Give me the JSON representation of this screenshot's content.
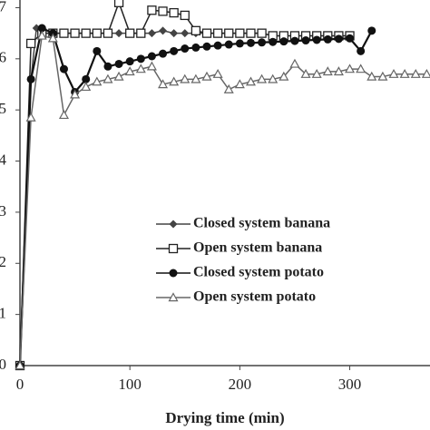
{
  "chart_data": {
    "type": "line",
    "x_label": "Drying time (min)",
    "xlim": [
      0,
      373
    ],
    "ylim": [
      0,
      7.15
    ],
    "xticks": [
      0,
      100,
      200,
      300
    ],
    "yticks": [
      0,
      1,
      2,
      3,
      4,
      5,
      6,
      7
    ],
    "series": [
      {
        "name": "Closed system banana",
        "color": "#444",
        "marker": "diamond",
        "x": [
          0,
          10,
          15,
          20,
          30,
          40,
          50,
          60,
          70,
          80,
          90,
          100,
          110,
          120,
          130,
          140,
          150,
          160,
          170,
          180,
          190,
          200,
          210,
          220
        ],
        "values": [
          0,
          5.6,
          6.6,
          6.6,
          6.5,
          6.5,
          6.5,
          6.5,
          6.5,
          6.5,
          6.5,
          6.5,
          6.5,
          6.5,
          6.55,
          6.5,
          6.5,
          6.5,
          6.5,
          6.5,
          6.5,
          6.5,
          6.5,
          6.5
        ]
      },
      {
        "name": "Open system banana",
        "color": "#222",
        "marker": "square",
        "x": [
          0,
          10,
          20,
          30,
          40,
          50,
          60,
          70,
          80,
          90,
          100,
          110,
          120,
          130,
          140,
          150,
          160,
          170,
          180,
          190,
          200,
          210,
          220,
          230,
          240,
          250,
          260,
          270,
          280,
          290,
          300
        ],
        "values": [
          0,
          6.3,
          6.5,
          6.5,
          6.5,
          6.5,
          6.5,
          6.5,
          6.5,
          7.1,
          6.5,
          6.5,
          6.95,
          6.93,
          6.9,
          6.85,
          6.55,
          6.5,
          6.5,
          6.5,
          6.5,
          6.5,
          6.5,
          6.45,
          6.45,
          6.45,
          6.45,
          6.45,
          6.45,
          6.45,
          6.45
        ]
      },
      {
        "name": "Closed system potato",
        "color": "#111",
        "marker": "circle",
        "x": [
          0,
          10,
          20,
          30,
          40,
          50,
          60,
          70,
          80,
          90,
          100,
          110,
          120,
          130,
          140,
          150,
          160,
          170,
          180,
          190,
          200,
          210,
          220,
          230,
          240,
          250,
          260,
          270,
          280,
          290,
          300,
          310,
          320
        ],
        "values": [
          0,
          5.6,
          6.6,
          6.5,
          5.8,
          5.35,
          5.6,
          6.15,
          5.85,
          5.9,
          5.95,
          6.0,
          6.05,
          6.1,
          6.15,
          6.2,
          6.22,
          6.24,
          6.26,
          6.28,
          6.3,
          6.31,
          6.32,
          6.33,
          6.34,
          6.35,
          6.36,
          6.37,
          6.38,
          6.39,
          6.4,
          6.15,
          6.55
        ]
      },
      {
        "name": "Open system potato",
        "color": "#666",
        "marker": "triangle",
        "x": [
          0,
          10,
          20,
          30,
          40,
          50,
          60,
          70,
          80,
          90,
          100,
          110,
          120,
          130,
          140,
          150,
          160,
          170,
          180,
          190,
          200,
          210,
          220,
          230,
          240,
          250,
          260,
          270,
          280,
          290,
          300,
          310,
          320,
          330,
          340,
          350,
          360,
          370
        ],
        "values": [
          0,
          4.85,
          6.45,
          6.4,
          4.9,
          5.3,
          5.45,
          5.55,
          5.6,
          5.65,
          5.75,
          5.8,
          5.85,
          5.5,
          5.55,
          5.6,
          5.6,
          5.65,
          5.7,
          5.4,
          5.5,
          5.55,
          5.6,
          5.6,
          5.65,
          5.9,
          5.7,
          5.7,
          5.75,
          5.75,
          5.8,
          5.8,
          5.65,
          5.65,
          5.7,
          5.7,
          5.7,
          5.7
        ]
      }
    ]
  }
}
